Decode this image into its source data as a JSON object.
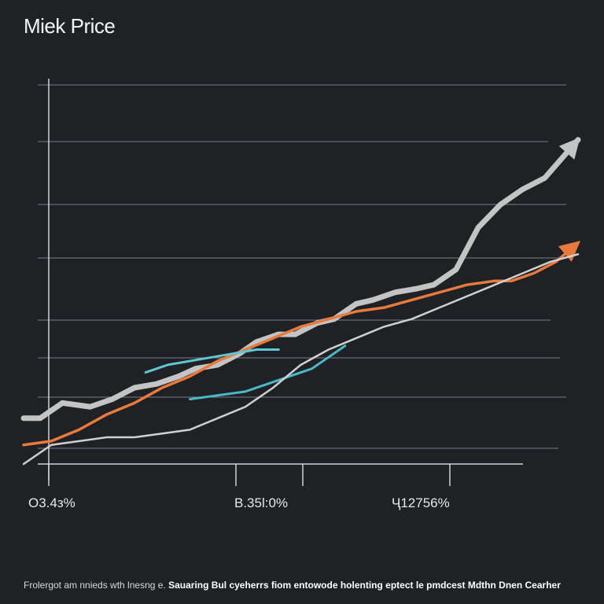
{
  "chart_data": {
    "type": "line",
    "title": "Miek Price",
    "xlabel": "",
    "ylabel": "",
    "xlim": [
      0,
      100
    ],
    "ylim": [
      0,
      100
    ],
    "grid": true,
    "tick_labels": [
      "O3.4з%",
      "B.35l:0%",
      "Ҷ12756%"
    ],
    "series": [
      {
        "name": "",
        "color": "#c4c4c4",
        "x": [
          0,
          3,
          7,
          12,
          16,
          20,
          24,
          28,
          31,
          35,
          39,
          42,
          46,
          49,
          53,
          56,
          60,
          63,
          67,
          71,
          74,
          78,
          82,
          86,
          90,
          94,
          100
        ],
        "y": [
          12,
          12,
          16,
          15,
          17,
          20,
          21,
          23,
          25,
          26,
          29,
          32,
          34,
          34,
          37,
          38,
          42,
          43,
          45,
          46,
          47,
          51,
          62,
          68,
          72,
          75,
          85
        ],
        "arrow": true
      },
      {
        "name": "",
        "color": "#e87a3e",
        "x": [
          0,
          5,
          10,
          15,
          20,
          25,
          30,
          35,
          40,
          45,
          50,
          55,
          60,
          65,
          70,
          75,
          80,
          85,
          88,
          92,
          96,
          100
        ],
        "y": [
          5,
          6,
          9,
          13,
          16,
          20,
          23,
          27,
          30,
          33,
          36,
          38,
          40,
          41,
          43,
          45,
          47,
          48,
          48,
          50,
          53,
          58
        ],
        "arrow": true
      },
      {
        "name": "",
        "color": "#4ab8c9",
        "x": [
          30,
          35,
          40,
          44,
          48,
          52,
          55,
          58
        ],
        "y": [
          17,
          18,
          19,
          21,
          23,
          25,
          28,
          31
        ],
        "arrow": false
      },
      {
        "name": "",
        "color": "#d0d0d0",
        "x": [
          0,
          5,
          10,
          15,
          20,
          25,
          30,
          35,
          40,
          45,
          50,
          55,
          60,
          65,
          70,
          75,
          80,
          85,
          90,
          95,
          100
        ],
        "y": [
          0,
          5,
          6,
          7,
          7,
          8,
          9,
          12,
          15,
          20,
          26,
          30,
          33,
          36,
          38,
          41,
          44,
          47,
          50,
          53,
          55
        ],
        "arrow": false
      },
      {
        "name": "",
        "color": "#5fc6d6",
        "x": [
          22,
          26,
          30,
          34,
          38,
          42,
          46
        ],
        "y": [
          24,
          26,
          27,
          28,
          29,
          30,
          30
        ],
        "arrow": false
      }
    ]
  },
  "footer": {
    "text_a": "Frolergot am nnieds wth lnesng e. ",
    "text_b": "Sauaring Bul cyeherrs fiom entowode holenting eptect le pmdcest ",
    "text_c": "Mdthn Dnen Cearher"
  },
  "colors": {
    "background": "#1f2125",
    "grid": "#7a7d84",
    "axis": "#cfd2d6"
  }
}
